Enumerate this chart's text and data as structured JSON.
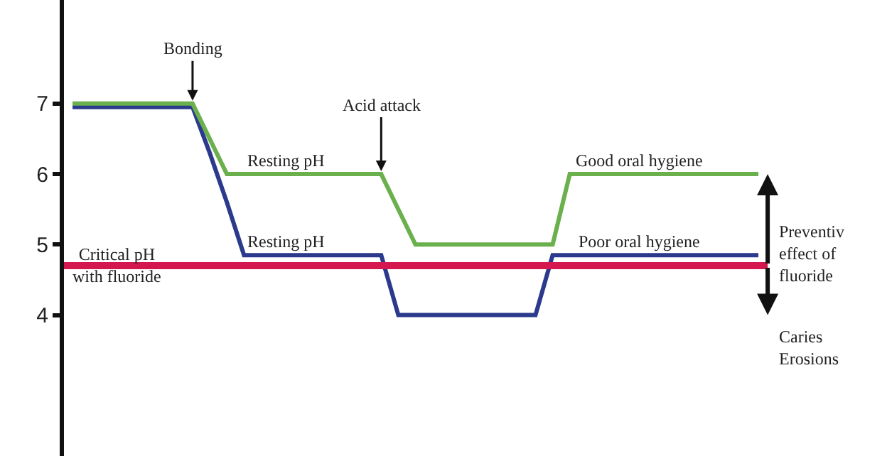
{
  "chart_data": {
    "type": "line",
    "categories": [
      null,
      null,
      null,
      null,
      null,
      null,
      null,
      null,
      null,
      null,
      null,
      null,
      null,
      null,
      null,
      null,
      null,
      null,
      null,
      null,
      null,
      null,
      null,
      null,
      null,
      null,
      null,
      null,
      null,
      null,
      null,
      null,
      null,
      null,
      null,
      null,
      null,
      null,
      null,
      null,
      null,
      null,
      null,
      null,
      null,
      null,
      null,
      null
    ],
    "ylim": [
      2.0,
      8.47
    ],
    "yticks": [
      4,
      5,
      6,
      7
    ],
    "tick_labels": "y",
    "marker": "none",
    "line_style": "solid",
    "series": [
      {
        "color": "#2b3a8c",
        "values": [
          6.95,
          6.95,
          6.95,
          6.95,
          6.95,
          6.95,
          6.95,
          6.95,
          6.3,
          5.6,
          4.85,
          4.85,
          4.85,
          4.85,
          4.85,
          4.85,
          4.85,
          4.85,
          4.85,
          4,
          4,
          4,
          4,
          4,
          4,
          4,
          4,
          4,
          4.85,
          4.85,
          4.85,
          4.85,
          4.85,
          4.85,
          4.85,
          4.85,
          4.85,
          4.85,
          4.85,
          4.85,
          4.85,
          null,
          null,
          null,
          null,
          null,
          null,
          null
        ]
      },
      {
        "color": "#6ab04c",
        "values": [
          7,
          7,
          7,
          7,
          7,
          7,
          7,
          7,
          6.5,
          6,
          6,
          6,
          6,
          6,
          6,
          6,
          6,
          6,
          6,
          5.5,
          5,
          5,
          5,
          5,
          5,
          5,
          5,
          5,
          5,
          6,
          6,
          6,
          6,
          6,
          6,
          6,
          6,
          6,
          6,
          6,
          6,
          null,
          null,
          null,
          null,
          null,
          null,
          null
        ]
      }
    ],
    "ref_lines": [
      {
        "axis": "y",
        "value": 4.7,
        "label": "Critical pH\nwith fluoride",
        "color": "#d4174f"
      }
    ],
    "annotations": [
      {
        "text": "Bonding",
        "y": 7
      },
      {
        "text": "Acid attack",
        "y": 6
      },
      {
        "text": "Resting pH",
        "y": 6
      },
      {
        "text": "Resting pH",
        "y": 4.85
      },
      {
        "text": "Good oral hygiene",
        "y": 6
      },
      {
        "text": "Poor oral hygiene",
        "y": 4.85
      },
      "Preventiv\neffect of\nfluoride",
      "Caries\nErosions"
    ]
  }
}
